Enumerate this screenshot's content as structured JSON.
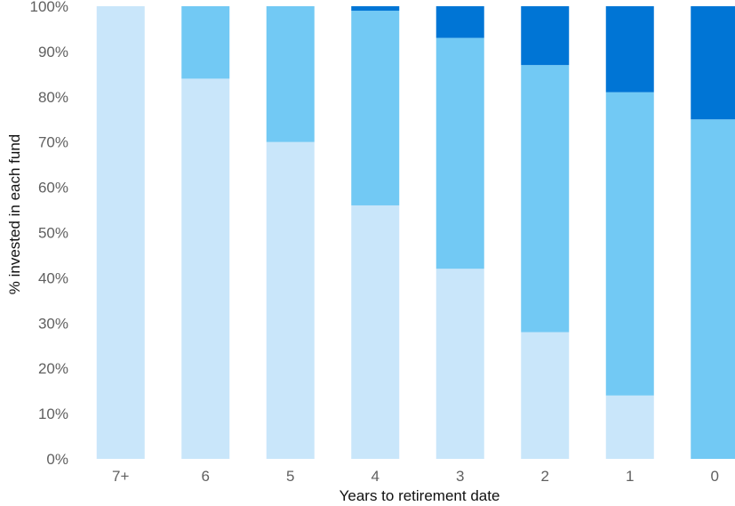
{
  "chart_data": {
    "type": "bar",
    "stacked": true,
    "categories": [
      "7+",
      "6",
      "5",
      "4",
      "3",
      "2",
      "1",
      "0"
    ],
    "series": [
      {
        "values": [
          100,
          84,
          70,
          56,
          42,
          28,
          14,
          0
        ],
        "color": "#c9e6fa"
      },
      {
        "values": [
          0,
          16,
          30,
          43,
          51,
          59,
          67,
          75
        ],
        "color": "#72c9f4"
      },
      {
        "values": [
          0,
          0,
          0,
          1,
          7,
          13,
          19,
          25
        ],
        "color": "#0075d5"
      }
    ],
    "xlabel": "Years to retirement date",
    "ylabel": "% invested in each fund",
    "ylim": [
      0,
      100
    ],
    "yticks": [
      "0%",
      "10%",
      "20%",
      "30%",
      "40%",
      "50%",
      "60%",
      "70%",
      "80%",
      "90%",
      "100%"
    ],
    "grid": false,
    "legend": "none"
  }
}
